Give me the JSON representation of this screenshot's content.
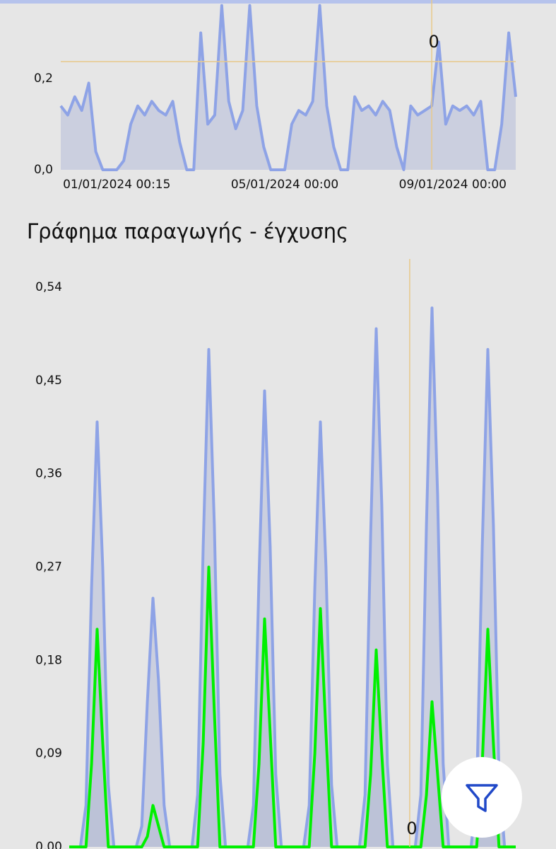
{
  "chart_data": [
    {
      "type": "line",
      "categories": [
        null,
        null,
        null,
        null,
        null,
        null,
        null,
        null,
        "01/01/2024 00:15",
        null,
        null,
        null,
        null,
        null,
        null,
        null,
        null,
        null,
        null,
        null,
        null,
        null,
        null,
        null,
        null,
        null,
        null,
        null,
        null,
        null,
        null,
        null,
        "05/01/2024 00:00",
        null,
        null,
        null,
        null,
        null,
        null,
        null,
        null,
        null,
        null,
        null,
        null,
        null,
        null,
        null,
        null,
        null,
        null,
        null,
        null,
        null,
        null,
        null,
        "09/01/2024 00:00",
        null,
        null,
        null,
        null,
        null,
        null,
        null,
        null,
        null
      ],
      "series": [
        {
          "color": "#8ea3e6",
          "values": [
            0.14,
            0.12,
            0.16,
            0.13,
            0.19,
            0.04,
            0,
            0,
            0,
            0.02,
            0.1,
            0.14,
            0.12,
            0.15,
            0.13,
            0.12,
            0.15,
            0.06,
            0,
            0,
            0.3,
            0.1,
            0.12,
            0.36,
            0.15,
            0.09,
            0.13,
            0.36,
            0.14,
            0.05,
            0,
            0,
            0,
            0.1,
            0.13,
            0.12,
            0.15,
            0.36,
            0.14,
            0.05,
            0,
            0,
            0.16,
            0.13,
            0.14,
            0.12,
            0.15,
            0.13,
            0.05,
            0,
            0.14,
            0.12,
            0.13,
            0.14,
            0.28,
            0.1,
            0.14,
            0.13,
            0.14,
            0.12,
            0.15,
            0,
            0,
            0.1,
            0.3,
            0.16
          ]
        }
      ],
      "ylim": [
        0,
        0.36
      ],
      "yticks": [
        {
          "value": 0,
          "label": "0,0"
        },
        {
          "value": 0.2,
          "label": "0,2"
        }
      ],
      "crosshair": {
        "index": 53,
        "y": 0.237,
        "label": "0"
      }
    },
    {
      "type": "line",
      "title": "Γράφημα παραγωγής - έγχυσης",
      "series": [
        {
          "color": "#8ea3e6",
          "values": [
            0,
            0,
            0,
            0.04,
            0.25,
            0.41,
            0.27,
            0.06,
            0,
            0,
            0,
            0,
            0,
            0.02,
            0.14,
            0.24,
            0.16,
            0.04,
            0,
            0,
            0,
            0,
            0,
            0.05,
            0.29,
            0.48,
            0.31,
            0.07,
            0,
            0,
            0,
            0,
            0,
            0.04,
            0.26,
            0.44,
            0.29,
            0.07,
            0,
            0,
            0,
            0,
            0,
            0.04,
            0.25,
            0.41,
            0.27,
            0.06,
            0,
            0,
            0,
            0,
            0,
            0.05,
            0.3,
            0.5,
            0.33,
            0.08,
            0,
            0,
            0,
            0,
            0,
            0.05,
            0.31,
            0.52,
            0.34,
            0.08,
            0,
            0,
            0,
            0,
            0,
            0.05,
            0.29,
            0.48,
            0.31,
            0.07,
            0,
            0,
            0
          ]
        },
        {
          "color": "#00f000",
          "values": [
            0,
            0,
            0,
            0,
            0.08,
            0.21,
            0.1,
            0,
            0,
            0,
            0,
            0,
            0,
            0,
            0.01,
            0.04,
            0.02,
            0,
            0,
            0,
            0,
            0,
            0,
            0,
            0.1,
            0.27,
            0.13,
            0,
            0,
            0,
            0,
            0,
            0,
            0,
            0.08,
            0.22,
            0.11,
            0,
            0,
            0,
            0,
            0,
            0,
            0,
            0.09,
            0.23,
            0.11,
            0,
            0,
            0,
            0,
            0,
            0,
            0,
            0.07,
            0.19,
            0.09,
            0,
            0,
            0,
            0,
            0,
            0,
            0,
            0.05,
            0.14,
            0.07,
            0,
            0,
            0,
            0,
            0,
            0,
            0,
            0.08,
            0.21,
            0.1,
            0,
            0,
            0,
            0
          ]
        }
      ],
      "ylim": [
        0,
        0.54
      ],
      "yticks": [
        {
          "value": 0,
          "label": "0,00"
        },
        {
          "value": 0.09,
          "label": "0,09"
        },
        {
          "value": 0.18,
          "label": "0,18"
        },
        {
          "value": 0.27,
          "label": "0,27"
        },
        {
          "value": 0.36,
          "label": "0,36"
        },
        {
          "value": 0.45,
          "label": "0,45"
        },
        {
          "value": 0.54,
          "label": "0,54"
        }
      ],
      "crosshair": {
        "index": 61,
        "label": "0"
      }
    }
  ]
}
